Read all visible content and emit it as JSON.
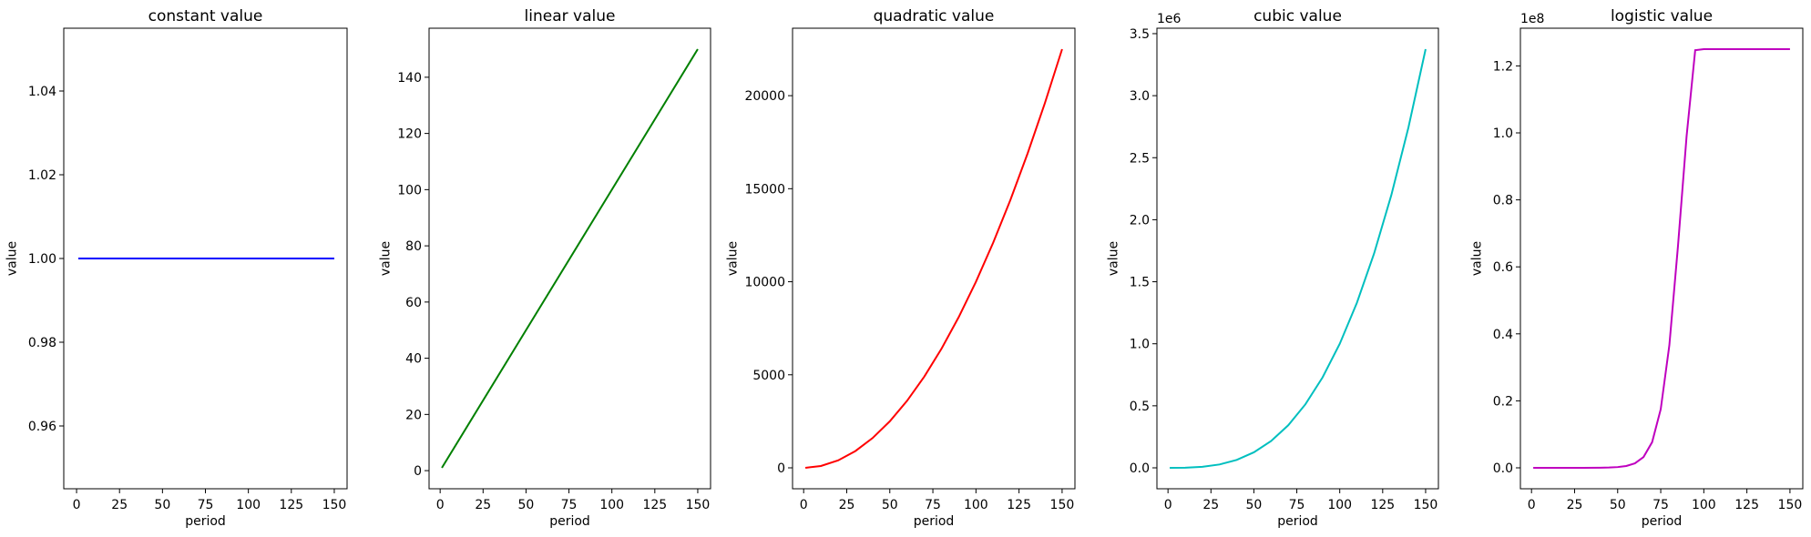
{
  "chart_data": [
    {
      "type": "line",
      "title": "constant value",
      "xlabel": "period",
      "ylabel": "value",
      "series": [
        {
          "color": "#0000ff",
          "x": [
            1,
            150
          ],
          "y": [
            1.0,
            1.0
          ]
        }
      ],
      "xlim": [
        -7.45,
        157.45
      ],
      "ylim": [
        0.945,
        1.055
      ],
      "xticks": [
        0,
        25,
        50,
        75,
        100,
        125,
        150
      ],
      "xtick_labels": [
        "0",
        "25",
        "50",
        "75",
        "100",
        "125",
        "150"
      ],
      "yticks": [
        0.96,
        0.98,
        1.0,
        1.02,
        1.04
      ],
      "ytick_labels": [
        "0.96",
        "0.98",
        "1.00",
        "1.02",
        "1.04"
      ],
      "offset_text": ""
    },
    {
      "type": "line",
      "title": "linear value",
      "xlabel": "period",
      "ylabel": "value",
      "series": [
        {
          "color": "#008000",
          "x": [
            1,
            150
          ],
          "y": [
            1,
            150
          ]
        }
      ],
      "xlim": [
        -6.45,
        157.45
      ],
      "ylim": [
        -6.45,
        157.45
      ],
      "xticks": [
        0,
        25,
        50,
        75,
        100,
        125,
        150
      ],
      "xtick_labels": [
        "0",
        "25",
        "50",
        "75",
        "100",
        "125",
        "150"
      ],
      "yticks": [
        0,
        20,
        40,
        60,
        80,
        100,
        120,
        140
      ],
      "ytick_labels": [
        "0",
        "20",
        "40",
        "60",
        "80",
        "100",
        "120",
        "140"
      ],
      "offset_text": ""
    },
    {
      "type": "line",
      "title": "quadratic value",
      "xlabel": "period",
      "ylabel": "value",
      "series": [
        {
          "color": "#ff0000",
          "x": [
            1,
            10,
            20,
            30,
            40,
            50,
            60,
            70,
            80,
            90,
            100,
            110,
            120,
            130,
            140,
            150
          ],
          "y": [
            1,
            100,
            400,
            900,
            1600,
            2500,
            3600,
            4900,
            6400,
            8100,
            10000,
            12100,
            14400,
            16900,
            19600,
            22500
          ]
        }
      ],
      "xlim": [
        -6.45,
        157.45
      ],
      "ylim": [
        -1125,
        23625
      ],
      "xticks": [
        0,
        25,
        50,
        75,
        100,
        125,
        150
      ],
      "xtick_labels": [
        "0",
        "25",
        "50",
        "75",
        "100",
        "125",
        "150"
      ],
      "yticks": [
        0,
        5000,
        10000,
        15000,
        20000
      ],
      "ytick_labels": [
        "0",
        "5000",
        "10000",
        "15000",
        "20000"
      ],
      "offset_text": ""
    },
    {
      "type": "line",
      "title": "cubic value",
      "xlabel": "period",
      "ylabel": "value",
      "series": [
        {
          "color": "#00bfbf",
          "x": [
            1,
            10,
            20,
            30,
            40,
            50,
            60,
            70,
            80,
            90,
            100,
            110,
            120,
            130,
            140,
            150
          ],
          "y": [
            0,
            0.001,
            0.008,
            0.027,
            0.064,
            0.125,
            0.216,
            0.343,
            0.512,
            0.729,
            1.0,
            1.331,
            1.728,
            2.197,
            2.744,
            3.375
          ]
        }
      ],
      "xlim": [
        -6.45,
        157.45
      ],
      "ylim": [
        -0.16875,
        3.54375
      ],
      "xticks": [
        0,
        25,
        50,
        75,
        100,
        125,
        150
      ],
      "xtick_labels": [
        "0",
        "25",
        "50",
        "75",
        "100",
        "125",
        "150"
      ],
      "yticks": [
        0,
        0.5,
        1.0,
        1.5,
        2.0,
        2.5,
        3.0,
        3.5
      ],
      "ytick_labels": [
        "0.0",
        "0.5",
        "1.0",
        "1.5",
        "2.0",
        "2.5",
        "3.0",
        "3.5"
      ],
      "offset_text": "1e6"
    },
    {
      "type": "line",
      "title": "logistic value",
      "xlabel": "period",
      "ylabel": "value",
      "series": [
        {
          "color": "#bf00bf",
          "x": [
            1,
            10,
            20,
            30,
            40,
            45,
            50,
            55,
            60,
            65,
            70,
            75,
            80,
            85,
            90,
            95,
            100,
            105,
            110,
            115,
            120,
            125,
            130,
            140,
            150
          ],
          "y": [
            0,
            0,
            0,
            0,
            0.0003,
            0.0009,
            0.0022,
            0.0054,
            0.0133,
            0.0322,
            0.0766,
            0.175,
            0.366,
            0.662,
            0.99,
            1.247,
            1.25,
            1.25,
            1.25,
            1.25,
            1.25,
            1.25,
            1.25,
            1.25,
            1.25
          ]
        }
      ],
      "xlim": [
        -6.45,
        157.45
      ],
      "ylim": [
        -0.0625,
        1.3125
      ],
      "xticks": [
        0,
        25,
        50,
        75,
        100,
        125,
        150
      ],
      "xtick_labels": [
        "0",
        "25",
        "50",
        "75",
        "100",
        "125",
        "150"
      ],
      "yticks": [
        0,
        0.2,
        0.4,
        0.6,
        0.8,
        1.0,
        1.2
      ],
      "ytick_labels": [
        "0.0",
        "0.2",
        "0.4",
        "0.6",
        "0.8",
        "1.0",
        "1.2"
      ],
      "offset_text": "1e8"
    }
  ]
}
